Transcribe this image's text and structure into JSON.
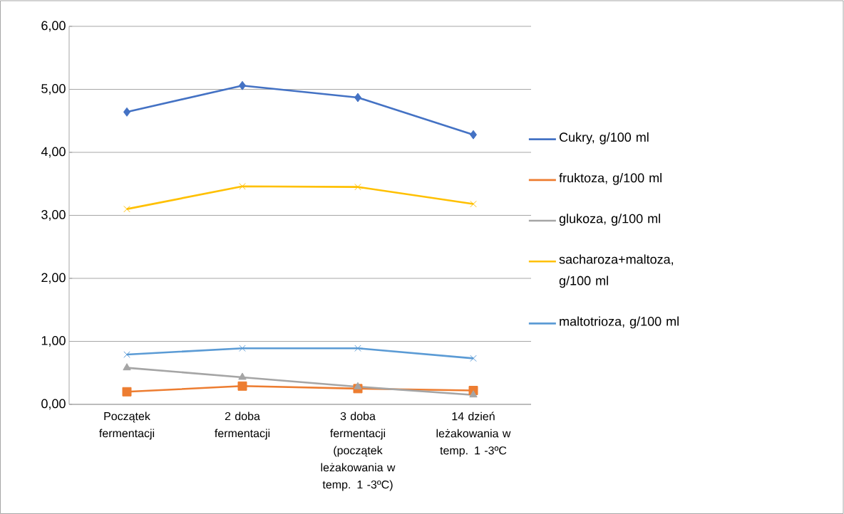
{
  "chart_data": {
    "type": "line",
    "categories": [
      "Początek fermentacji",
      "2 doba fermentacji",
      "3 doba fermentacji (początek leżakowania w temp. 1 -3ºC)",
      "14 dzień leżakowania w temp. 1 -3ºC"
    ],
    "series": [
      {
        "name": "Cukry, g/100 ml",
        "color": "#4472c4",
        "marker": "diamond",
        "values": [
          4.64,
          5.06,
          4.87,
          4.28
        ]
      },
      {
        "name": "fruktoza, g/100 ml",
        "color": "#ed7d31",
        "marker": "square",
        "values": [
          0.2,
          0.29,
          0.25,
          0.22
        ]
      },
      {
        "name": "glukoza, g/100 ml",
        "color": "#a5a5a5",
        "marker": "triangle",
        "values": [
          0.58,
          0.43,
          0.28,
          0.15
        ]
      },
      {
        "name": "sacharoza+maltoza, g/100 ml",
        "color": "#ffc000",
        "marker": "cross",
        "values": [
          3.1,
          3.46,
          3.45,
          3.18
        ]
      },
      {
        "name": "maltotrioza, g/100 ml",
        "color": "#5b9bd5",
        "marker": "cross",
        "values": [
          0.79,
          0.89,
          0.89,
          0.73
        ]
      }
    ],
    "ylim": [
      0,
      6
    ],
    "yticks": [
      {
        "value": 0,
        "label": "0,00"
      },
      {
        "value": 1,
        "label": "1,00"
      },
      {
        "value": 2,
        "label": "2,00"
      },
      {
        "value": 3,
        "label": "3,00"
      },
      {
        "value": 4,
        "label": "4,00"
      },
      {
        "value": 5,
        "label": "5,00"
      },
      {
        "value": 6,
        "label": "6,00"
      }
    ],
    "grid": "y",
    "legend": "right"
  }
}
